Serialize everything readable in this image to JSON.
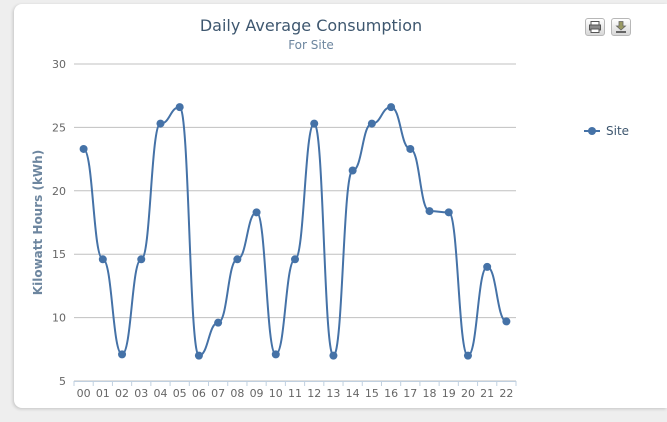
{
  "title": "Daily Average Consumption",
  "subtitle": "For Site",
  "toolbar": {
    "print_icon": "printer-icon",
    "export_icon": "download-icon"
  },
  "colors": {
    "series": "#4572a7",
    "grid": "#c0c0c0",
    "title": "#3e576f",
    "subtitle": "#6d869f"
  },
  "chart_data": {
    "type": "line",
    "title": "Daily Average Consumption",
    "subtitle": "For Site",
    "xlabel": "",
    "ylabel": "Kilowatt Hours (kWh)",
    "ylim": [
      5,
      30
    ],
    "yticks": [
      5,
      10,
      15,
      20,
      25,
      30
    ],
    "grid": true,
    "legend": "right",
    "categories": [
      "00",
      "01",
      "02",
      "03",
      "04",
      "05",
      "06",
      "07",
      "08",
      "09",
      "10",
      "11",
      "12",
      "13",
      "14",
      "15",
      "16",
      "17",
      "18",
      "19",
      "20",
      "21",
      "22"
    ],
    "series": [
      {
        "name": "Site",
        "values": [
          23.3,
          14.6,
          7.1,
          14.6,
          25.3,
          26.6,
          7.0,
          9.6,
          14.6,
          18.3,
          7.1,
          14.6,
          25.3,
          7.0,
          21.6,
          25.3,
          26.6,
          23.3,
          18.4,
          18.3,
          7.0,
          14.0,
          9.7
        ]
      }
    ]
  }
}
